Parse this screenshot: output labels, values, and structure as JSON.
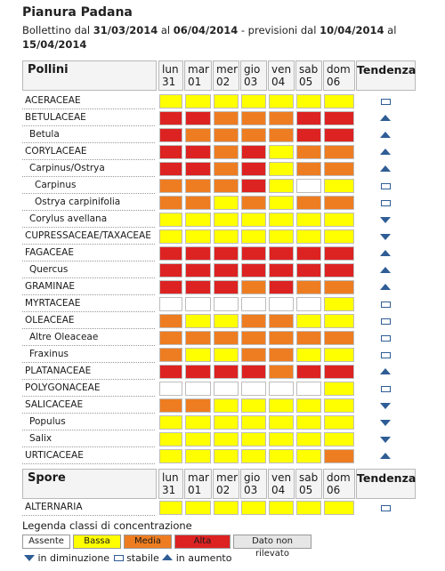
{
  "title": "Pianura Padana",
  "bulletin": {
    "prefix": "Bollettino dal",
    "from": "31/03/2014",
    "to_word": "al",
    "to": "06/04/2014",
    "forecast_prefix": "- previsioni dal",
    "forecast_from": "10/04/2014",
    "forecast_to_word": "al",
    "forecast_to": "15/04/2014"
  },
  "days": [
    {
      "dow": "lun",
      "date": "31"
    },
    {
      "dow": "mar",
      "date": "01"
    },
    {
      "dow": "mer",
      "date": "02"
    },
    {
      "dow": "gio",
      "date": "03"
    },
    {
      "dow": "ven",
      "date": "04"
    },
    {
      "dow": "sab",
      "date": "05"
    },
    {
      "dow": "dom",
      "date": "06"
    }
  ],
  "pollen_header": "Pollini",
  "spore_header": "Spore",
  "trend_header": "Tendenza",
  "pollen_rows": [
    {
      "name": "ACERACEAE",
      "indent": 0,
      "levels": [
        "low",
        "low",
        "low",
        "low",
        "low",
        "low",
        "low"
      ],
      "trend": "stable"
    },
    {
      "name": "BETULACEAE",
      "indent": 0,
      "levels": [
        "high",
        "high",
        "mid",
        "mid",
        "mid",
        "high",
        "high"
      ],
      "trend": "up"
    },
    {
      "name": "Betula",
      "indent": 1,
      "levels": [
        "high",
        "mid",
        "mid",
        "mid",
        "mid",
        "high",
        "high"
      ],
      "trend": "up"
    },
    {
      "name": "CORYLACEAE",
      "indent": 0,
      "levels": [
        "high",
        "high",
        "mid",
        "high",
        "low",
        "mid",
        "mid"
      ],
      "trend": "up"
    },
    {
      "name": "Carpinus/Ostrya",
      "indent": 1,
      "levels": [
        "high",
        "high",
        "mid",
        "high",
        "low",
        "mid",
        "mid"
      ],
      "trend": "up"
    },
    {
      "name": "Carpinus",
      "indent": 2,
      "levels": [
        "mid",
        "mid",
        "mid",
        "high",
        "low",
        "absent",
        "low"
      ],
      "trend": "stable"
    },
    {
      "name": "Ostrya carpinifolia",
      "indent": 2,
      "levels": [
        "mid",
        "mid",
        "low",
        "mid",
        "low",
        "mid",
        "mid"
      ],
      "trend": "stable"
    },
    {
      "name": "Corylus avellana",
      "indent": 1,
      "levels": [
        "low",
        "low",
        "low",
        "low",
        "low",
        "low",
        "low"
      ],
      "trend": "down"
    },
    {
      "name": "CUPRESSACEAE/TAXACEAE",
      "indent": 0,
      "levels": [
        "low",
        "low",
        "low",
        "low",
        "low",
        "low",
        "low"
      ],
      "trend": "down"
    },
    {
      "name": "FAGACEAE",
      "indent": 0,
      "levels": [
        "high",
        "high",
        "high",
        "high",
        "high",
        "high",
        "high"
      ],
      "trend": "up"
    },
    {
      "name": "Quercus",
      "indent": 1,
      "levels": [
        "high",
        "high",
        "high",
        "high",
        "high",
        "high",
        "high"
      ],
      "trend": "up"
    },
    {
      "name": "GRAMINAE",
      "indent": 0,
      "levels": [
        "high",
        "high",
        "high",
        "mid",
        "high",
        "mid",
        "mid"
      ],
      "trend": "up"
    },
    {
      "name": "MYRTACEAE",
      "indent": 0,
      "levels": [
        "absent",
        "absent",
        "absent",
        "absent",
        "absent",
        "absent",
        "low"
      ],
      "trend": "stable"
    },
    {
      "name": "OLEACEAE",
      "indent": 0,
      "levels": [
        "mid",
        "low",
        "low",
        "mid",
        "mid",
        "low",
        "low"
      ],
      "trend": "stable"
    },
    {
      "name": "Altre Oleaceae",
      "indent": 1,
      "levels": [
        "mid",
        "mid",
        "mid",
        "mid",
        "mid",
        "mid",
        "mid"
      ],
      "trend": "stable"
    },
    {
      "name": "Fraxinus",
      "indent": 1,
      "levels": [
        "mid",
        "low",
        "low",
        "mid",
        "mid",
        "low",
        "low"
      ],
      "trend": "stable"
    },
    {
      "name": "PLATANACEAE",
      "indent": 0,
      "levels": [
        "high",
        "high",
        "high",
        "high",
        "mid",
        "high",
        "high"
      ],
      "trend": "up"
    },
    {
      "name": "POLYGONACEAE",
      "indent": 0,
      "levels": [
        "absent",
        "absent",
        "absent",
        "absent",
        "absent",
        "absent",
        "low"
      ],
      "trend": "stable"
    },
    {
      "name": "SALICACEAE",
      "indent": 0,
      "levels": [
        "mid",
        "mid",
        "low",
        "low",
        "low",
        "low",
        "low"
      ],
      "trend": "down"
    },
    {
      "name": "Populus",
      "indent": 1,
      "levels": [
        "low",
        "low",
        "low",
        "low",
        "low",
        "low",
        "low"
      ],
      "trend": "down"
    },
    {
      "name": "Salix",
      "indent": 1,
      "levels": [
        "low",
        "low",
        "low",
        "low",
        "low",
        "low",
        "low"
      ],
      "trend": "down"
    },
    {
      "name": "URTICACEAE",
      "indent": 0,
      "levels": [
        "low",
        "low",
        "low",
        "low",
        "low",
        "low",
        "mid"
      ],
      "trend": "up"
    }
  ],
  "spore_rows": [
    {
      "name": "ALTERNARIA",
      "indent": 0,
      "levels": [
        "low",
        "low",
        "low",
        "low",
        "low",
        "low",
        "low"
      ],
      "trend": "stable"
    }
  ],
  "legend": {
    "title": "Legenda classi di concentrazione",
    "classes": [
      {
        "key": "absent",
        "label": "Assente",
        "color": "#ffffff"
      },
      {
        "key": "low",
        "label": "Bassa",
        "color": "#ffff00"
      },
      {
        "key": "mid",
        "label": "Media",
        "color": "#ee7d21"
      },
      {
        "key": "high",
        "label": "Alta",
        "color": "#dd2222"
      },
      {
        "key": "na",
        "label": "Dato non rilevato",
        "color": "#e6e6e6"
      }
    ],
    "trend_down": "in diminuzione",
    "trend_stable": "stabile",
    "trend_up": "in aumento"
  },
  "icons": {
    "up": "triangle-up-icon",
    "down": "triangle-down-icon",
    "stable": "rectangle-stable-icon"
  }
}
